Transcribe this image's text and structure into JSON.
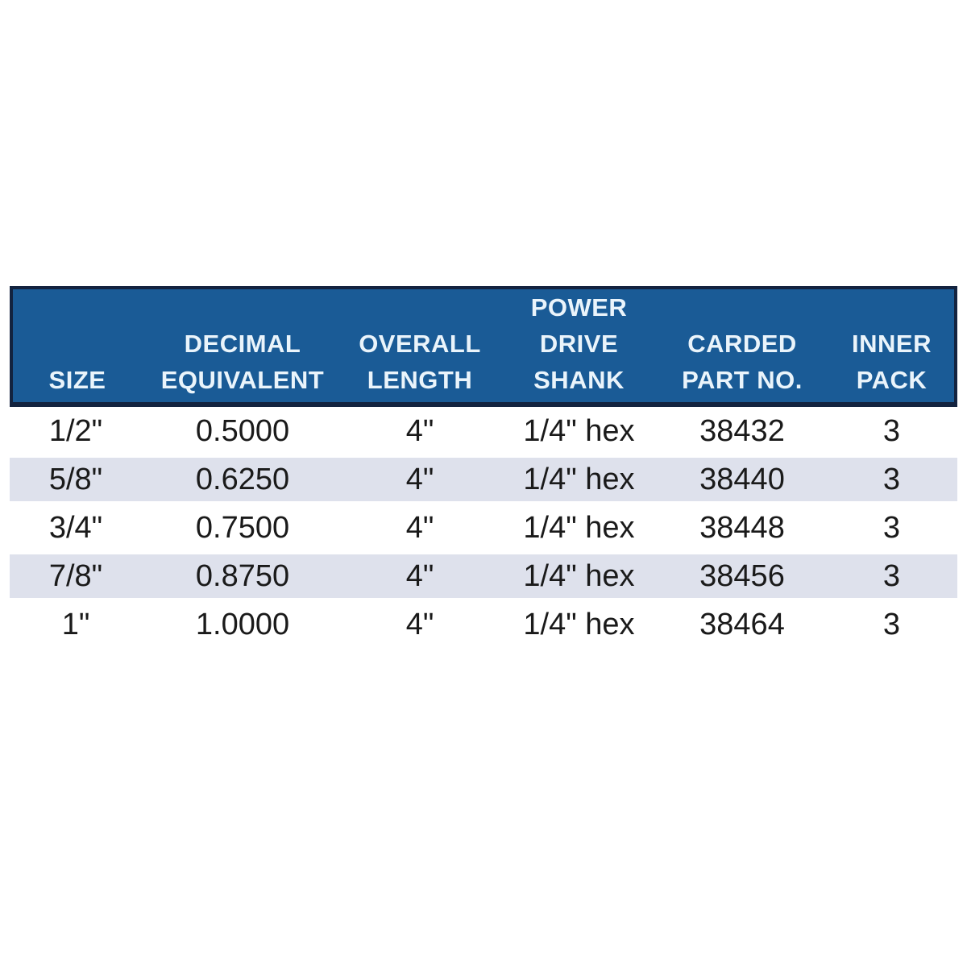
{
  "table": {
    "colors": {
      "header_bg": "#1a5b96",
      "header_border": "#13233f",
      "header_text": "#eaf4fb",
      "row_shade": "#dee1ec",
      "data_text": "#1a1a1a"
    },
    "columns": [
      {
        "id": "size",
        "lines": [
          "SIZE"
        ]
      },
      {
        "id": "decimal-equivalent",
        "lines": [
          "DECIMAL",
          "EQUIVALENT"
        ]
      },
      {
        "id": "overall-length",
        "lines": [
          "OVERALL",
          "LENGTH"
        ]
      },
      {
        "id": "power-drive-shank",
        "lines": [
          "POWER",
          "DRIVE",
          "SHANK"
        ]
      },
      {
        "id": "carded-part-no",
        "lines": [
          "CARDED",
          "PART NO."
        ]
      },
      {
        "id": "inner-pack",
        "lines": [
          "INNER",
          "PACK"
        ]
      }
    ],
    "rows": [
      [
        "1/2\"",
        "0.5000",
        "4\"",
        "1/4\" hex",
        "38432",
        "3"
      ],
      [
        "5/8\"",
        "0.6250",
        "4\"",
        "1/4\" hex",
        "38440",
        "3"
      ],
      [
        "3/4\"",
        "0.7500",
        "4\"",
        "1/4\" hex",
        "38448",
        "3"
      ],
      [
        "7/8\"",
        "0.8750",
        "4\"",
        "1/4\" hex",
        "38456",
        "3"
      ],
      [
        "1\"",
        "1.0000",
        "4\"",
        "1/4\" hex",
        "38464",
        "3"
      ]
    ]
  },
  "chart_data": {
    "type": "table",
    "title": "",
    "columns": [
      "SIZE",
      "DECIMAL EQUIVALENT",
      "OVERALL LENGTH",
      "POWER DRIVE SHANK",
      "CARDED PART NO.",
      "INNER PACK"
    ],
    "rows": [
      [
        "1/2\"",
        "0.5000",
        "4\"",
        "1/4\" hex",
        "38432",
        "3"
      ],
      [
        "5/8\"",
        "0.6250",
        "4\"",
        "1/4\" hex",
        "38440",
        "3"
      ],
      [
        "3/4\"",
        "0.7500",
        "4\"",
        "1/4\" hex",
        "38448",
        "3"
      ],
      [
        "7/8\"",
        "0.8750",
        "4\"",
        "1/4\" hex",
        "38456",
        "3"
      ],
      [
        "1\"",
        "1.0000",
        "4\"",
        "1/4\" hex",
        "38464",
        "3"
      ]
    ]
  }
}
